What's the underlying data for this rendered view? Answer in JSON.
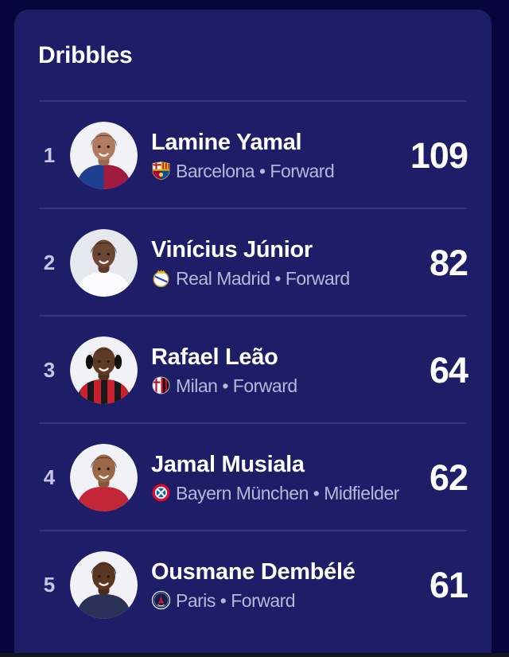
{
  "card": {
    "title": "Dribbles"
  },
  "theme": {
    "page_bg": "#06063c",
    "card_bg": "#1d1d68",
    "divider": "#34347c",
    "name_color": "#ffffff",
    "meta_color": "#b7b7d9",
    "rank_color": "#c6c6e4",
    "value_color": "#ffffff",
    "bottom_bar": "#16161f"
  },
  "players": [
    {
      "rank": "1",
      "name": "Lamine Yamal",
      "meta": "Barcelona • Forward",
      "value": "109",
      "badge_id": "barcelona",
      "badge_icon": "barcelona-crest-icon",
      "avatar": {
        "bg": "#f1f1f6",
        "skin": "#b07b5e",
        "skin_shade": "#9a6a50",
        "hair": "#171210",
        "hair_style": "short-curls",
        "jersey_style": "halves",
        "jersey_colors": [
          "#1d3f8f",
          "#a01a40"
        ]
      }
    },
    {
      "rank": "2",
      "name": "Vinícius Júnior",
      "meta": "Real Madrid • Forward",
      "value": "82",
      "badge_id": "real-madrid",
      "badge_icon": "real-madrid-crest-icon",
      "avatar": {
        "bg": "#e7e7ee",
        "skin": "#6d4733",
        "skin_shade": "#5d3b2a",
        "hair": "#14100c",
        "hair_style": "short",
        "jersey_style": "solid",
        "jersey_colors": [
          "#fbfbfd"
        ]
      }
    },
    {
      "rank": "3",
      "name": "Rafael Leão",
      "meta": "Milan • Forward",
      "value": "64",
      "badge_id": "milan",
      "badge_icon": "milan-crest-icon",
      "avatar": {
        "bg": "#f1f1f6",
        "skin": "#5f3b27",
        "skin_shade": "#50311f",
        "hair": "#120e0a",
        "hair_style": "dreads",
        "jersey_style": "stripes",
        "jersey_colors": [
          "#17171c",
          "#c9202e"
        ]
      }
    },
    {
      "rank": "4",
      "name": "Jamal Musiala",
      "meta": "Bayern München • Midfielder",
      "value": "62",
      "badge_id": "bayern",
      "badge_icon": "bayern-crest-icon",
      "avatar": {
        "bg": "#f1f1f6",
        "skin": "#9a6847",
        "skin_shade": "#86573a",
        "hair": "#15100b",
        "hair_style": "short",
        "jersey_style": "solid",
        "jersey_colors": [
          "#c22637"
        ]
      }
    },
    {
      "rank": "5",
      "name": "Ousmane Dembélé",
      "meta": "Paris • Forward",
      "value": "61",
      "badge_id": "psg",
      "badge_icon": "psg-crest-icon",
      "avatar": {
        "bg": "#f1f1f6",
        "skin": "#5a3521",
        "skin_shade": "#4b2b19",
        "hair": "#110d09",
        "hair_style": "short-high",
        "jersey_style": "solid",
        "jersey_colors": [
          "#2b3258"
        ]
      }
    }
  ]
}
